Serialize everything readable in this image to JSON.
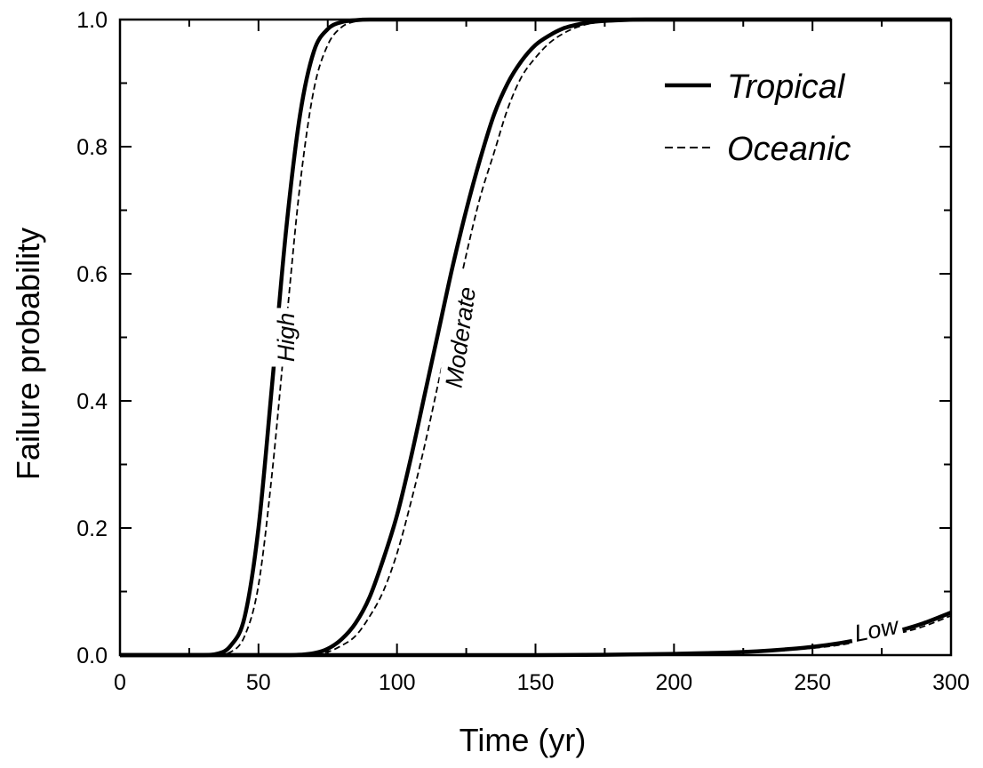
{
  "chart_data": {
    "type": "line",
    "xlabel": "Time (yr)",
    "ylabel": "Failure probability",
    "xlim": [
      0,
      300
    ],
    "ylim": [
      0,
      1.0
    ],
    "x_ticks": [
      0,
      50,
      100,
      150,
      200,
      250,
      300
    ],
    "x_tick_labels": [
      "0",
      "50",
      "100",
      "150",
      "200",
      "250",
      "300"
    ],
    "y_ticks": [
      0,
      0.2,
      0.4,
      0.6,
      0.8,
      1.0
    ],
    "y_tick_labels": [
      "0.0",
      "0.2",
      "0.4",
      "0.6",
      "0.8",
      "1.0"
    ],
    "grid": false,
    "legend": {
      "position": "top-right",
      "entries": [
        {
          "label": "Tropical",
          "style": "solid"
        },
        {
          "label": "Oceanic",
          "style": "dashed"
        }
      ]
    },
    "series": [
      {
        "name": "Tropical",
        "group": "High",
        "style": "solid",
        "color": "#000000",
        "x": [
          0,
          30,
          35,
          40,
          45,
          50,
          55,
          60,
          65,
          70,
          75,
          80,
          85,
          90,
          100,
          300
        ],
        "y": [
          0,
          0,
          0.002,
          0.015,
          0.06,
          0.2,
          0.43,
          0.67,
          0.85,
          0.95,
          0.985,
          0.996,
          0.999,
          1.0,
          1.0,
          1.0
        ]
      },
      {
        "name": "Oceanic",
        "group": "High",
        "style": "dashed",
        "color": "#000000",
        "x": [
          0,
          30,
          35,
          40,
          45,
          50,
          55,
          60,
          65,
          70,
          75,
          80,
          85,
          90,
          95,
          100,
          300
        ],
        "y": [
          0,
          0,
          0.001,
          0.005,
          0.03,
          0.11,
          0.29,
          0.52,
          0.74,
          0.89,
          0.96,
          0.988,
          0.997,
          0.999,
          1.0,
          1.0,
          1.0
        ]
      },
      {
        "name": "Tropical",
        "group": "Moderate",
        "style": "solid",
        "color": "#000000",
        "x": [
          0,
          60,
          70,
          75,
          80,
          85,
          90,
          95,
          100,
          105,
          110,
          115,
          120,
          125,
          130,
          135,
          140,
          145,
          150,
          155,
          160,
          165,
          170,
          180,
          190,
          300
        ],
        "y": [
          0,
          0,
          0.003,
          0.01,
          0.025,
          0.05,
          0.09,
          0.15,
          0.22,
          0.31,
          0.41,
          0.51,
          0.61,
          0.7,
          0.78,
          0.85,
          0.9,
          0.935,
          0.96,
          0.975,
          0.986,
          0.992,
          0.996,
          0.999,
          1.0,
          1.0
        ]
      },
      {
        "name": "Oceanic",
        "group": "Moderate",
        "style": "dashed",
        "color": "#000000",
        "x": [
          0,
          60,
          70,
          75,
          80,
          85,
          90,
          95,
          100,
          105,
          110,
          115,
          120,
          125,
          130,
          135,
          140,
          145,
          150,
          155,
          160,
          165,
          170,
          175,
          180,
          190,
          300
        ],
        "y": [
          0,
          0,
          0.002,
          0.005,
          0.015,
          0.03,
          0.06,
          0.1,
          0.16,
          0.24,
          0.33,
          0.43,
          0.53,
          0.63,
          0.72,
          0.79,
          0.86,
          0.91,
          0.94,
          0.963,
          0.978,
          0.988,
          0.994,
          0.997,
          0.999,
          1.0,
          1.0
        ]
      },
      {
        "name": "Tropical",
        "group": "Low",
        "style": "solid",
        "color": "#000000",
        "x": [
          0,
          150,
          175,
          200,
          210,
          220,
          230,
          240,
          250,
          260,
          270,
          280,
          290,
          300
        ],
        "y": [
          0,
          0,
          0.0005,
          0.002,
          0.003,
          0.004,
          0.006,
          0.009,
          0.013,
          0.019,
          0.027,
          0.037,
          0.05,
          0.067
        ]
      },
      {
        "name": "Oceanic",
        "group": "Low",
        "style": "dashed",
        "color": "#000000",
        "x": [
          0,
          150,
          175,
          200,
          210,
          220,
          230,
          240,
          250,
          260,
          270,
          280,
          290,
          300
        ],
        "y": [
          0,
          0,
          0.0004,
          0.0015,
          0.0025,
          0.0035,
          0.005,
          0.008,
          0.011,
          0.016,
          0.024,
          0.033,
          0.045,
          0.062
        ]
      }
    ],
    "annotations": [
      {
        "text": "High",
        "x": 60,
        "y": 0.5
      },
      {
        "text": "Moderate",
        "x": 123,
        "y": 0.5
      },
      {
        "text": "Low",
        "x": 273,
        "y": 0.04
      }
    ]
  }
}
